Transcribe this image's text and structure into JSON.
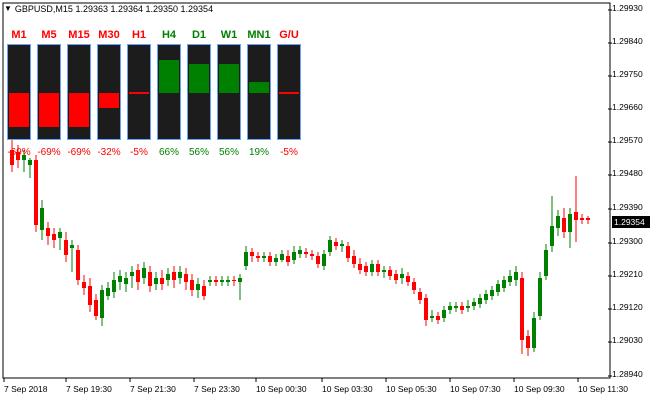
{
  "header": {
    "title": "GBPUSD,M15  1.29363 1.29364 1.29350 1.29354"
  },
  "current_price": "1.29354",
  "colors": {
    "bull": "#008000",
    "bear": "#ff0000",
    "panel": "#1c1c1c"
  },
  "y_axis": {
    "labels": [
      "1.29930",
      "1.29840",
      "1.29750",
      "1.29660",
      "1.29570",
      "1.29480",
      "1.29390",
      "1.29300",
      "1.29210",
      "1.29120",
      "1.29030",
      "1.28940"
    ]
  },
  "x_axis": {
    "labels": [
      "7 Sep 2018",
      "7 Sep 19:30",
      "7 Sep 21:30",
      "7 Sep 23:30",
      "10 Sep 00:30",
      "10 Sep 03:30",
      "10 Sep 05:30",
      "10 Sep 07:30",
      "10 Sep 09:30",
      "10 Sep 11:30"
    ]
  },
  "indicator": {
    "timeframes": [
      {
        "label": "M1",
        "pct": "-69%",
        "dir": "down"
      },
      {
        "label": "M5",
        "pct": "-69%",
        "dir": "down"
      },
      {
        "label": "M15",
        "pct": "-69%",
        "dir": "down"
      },
      {
        "label": "M30",
        "pct": "-32%",
        "dir": "down"
      },
      {
        "label": "H1",
        "pct": "-5%",
        "dir": "down"
      },
      {
        "label": "H4",
        "pct": "66%",
        "dir": "up"
      },
      {
        "label": "D1",
        "pct": "56%",
        "dir": "up"
      },
      {
        "label": "W1",
        "pct": "56%",
        "dir": "up"
      },
      {
        "label": "MN1",
        "pct": "19%",
        "dir": "up"
      },
      {
        "label": "G/U",
        "pct": "-5%",
        "dir": "down"
      }
    ]
  }
}
